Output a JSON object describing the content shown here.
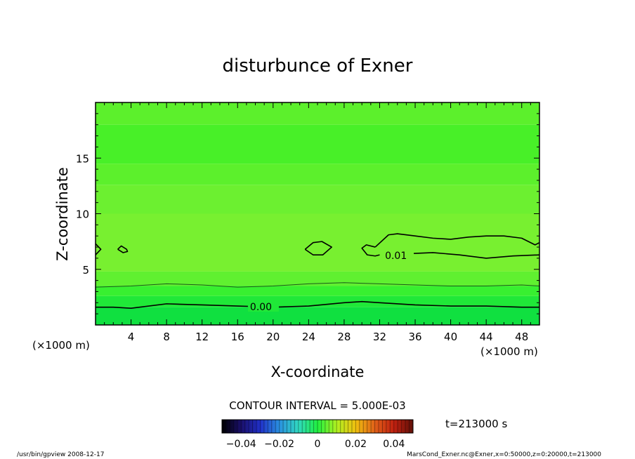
{
  "chart_data": {
    "type": "contour",
    "title": "disturbunce of Exner",
    "xlabel": "X-coordinate",
    "ylabel": "Z-coordinate",
    "x_unit": "(×1000 m)",
    "y_unit": "(×1000 m)",
    "xlim": [
      0,
      50
    ],
    "ylim": [
      0,
      20
    ],
    "x_ticks": [
      4,
      8,
      12,
      16,
      20,
      24,
      28,
      32,
      36,
      40,
      44,
      48
    ],
    "y_ticks": [
      5,
      10,
      15
    ],
    "contour_interval_label": "CONTOUR INTERVAL = 5.000E-03",
    "time_label": "t=213000 s",
    "contour_labels": [
      {
        "text": "0.00",
        "x": 17.4,
        "z": 1.7
      },
      {
        "text": "0.01",
        "x": 32.6,
        "z": 6.3
      }
    ],
    "contours": [
      {
        "level": 0.0,
        "points": [
          [
            0,
            1.6
          ],
          [
            2,
            1.6
          ],
          [
            4,
            1.5
          ],
          [
            6,
            1.7
          ],
          [
            8,
            1.9
          ],
          [
            12,
            1.8
          ],
          [
            16,
            1.7
          ],
          [
            20,
            1.6
          ],
          [
            24,
            1.7
          ],
          [
            28,
            2.0
          ],
          [
            30,
            2.1
          ],
          [
            32,
            2.0
          ],
          [
            36,
            1.8
          ],
          [
            40,
            1.7
          ],
          [
            44,
            1.7
          ],
          [
            48,
            1.6
          ],
          [
            50,
            1.6
          ]
        ]
      },
      {
        "level": 0.01,
        "points": [
          [
            31.5,
            7.0
          ],
          [
            30.5,
            7.2
          ],
          [
            30.0,
            6.9
          ],
          [
            30.6,
            6.3
          ],
          [
            31.5,
            6.2
          ],
          [
            32.0,
            6.3
          ]
        ]
      },
      {
        "level": 0.01,
        "points": [
          [
            35.0,
            6.4
          ],
          [
            38,
            6.5
          ],
          [
            41,
            6.3
          ],
          [
            44,
            6.0
          ],
          [
            47,
            6.2
          ],
          [
            50,
            6.3
          ]
        ]
      },
      {
        "level": 0.01,
        "points": [
          [
            31.5,
            7.0
          ],
          [
            33,
            8.1
          ],
          [
            34,
            8.2
          ],
          [
            36,
            8.0
          ],
          [
            38,
            7.8
          ],
          [
            40,
            7.7
          ],
          [
            42,
            7.9
          ],
          [
            44,
            8.0
          ],
          [
            46,
            8.0
          ],
          [
            48,
            7.8
          ],
          [
            49.5,
            7.2
          ],
          [
            50,
            7.4
          ]
        ]
      },
      {
        "level": 0.01,
        "points": [
          [
            23.6,
            6.8
          ],
          [
            24.5,
            7.4
          ],
          [
            25.5,
            7.5
          ],
          [
            26.6,
            7.0
          ],
          [
            25.6,
            6.3
          ],
          [
            24.5,
            6.3
          ],
          [
            23.6,
            6.8
          ]
        ]
      },
      {
        "level": 0.01,
        "points": [
          [
            2.5,
            6.8
          ],
          [
            2.9,
            7.1
          ],
          [
            3.5,
            6.8
          ],
          [
            3.6,
            6.6
          ],
          [
            3.1,
            6.5
          ],
          [
            2.5,
            6.8
          ]
        ]
      },
      {
        "level": 0.01,
        "points": [
          [
            0,
            7.3
          ],
          [
            0.6,
            6.8
          ],
          [
            0,
            6.3
          ]
        ]
      }
    ],
    "thin_contours": [
      {
        "points": [
          [
            0,
            3.4
          ],
          [
            4,
            3.5
          ],
          [
            8,
            3.7
          ],
          [
            12,
            3.6
          ],
          [
            16,
            3.4
          ],
          [
            20,
            3.5
          ],
          [
            24,
            3.7
          ],
          [
            28,
            3.8
          ],
          [
            32,
            3.7
          ],
          [
            36,
            3.6
          ],
          [
            40,
            3.5
          ],
          [
            44,
            3.5
          ],
          [
            48,
            3.6
          ],
          [
            50,
            3.5
          ]
        ]
      }
    ],
    "bands": [
      {
        "z0": 0.0,
        "z1": 1.6,
        "color": "#10e040"
      },
      {
        "z0": 1.6,
        "z1": 2.6,
        "color": "#20e838"
      },
      {
        "z0": 2.6,
        "z1": 3.5,
        "color": "#38f030"
      },
      {
        "z0": 3.5,
        "z1": 4.8,
        "color": "#60f030"
      },
      {
        "z0": 4.8,
        "z1": 10.0,
        "color": "#78f030"
      },
      {
        "z0": 10.0,
        "z1": 12.6,
        "color": "#6cf030"
      },
      {
        "z0": 12.6,
        "z1": 14.5,
        "color": "#5cf02c"
      },
      {
        "z0": 14.5,
        "z1": 18.0,
        "color": "#48f028"
      },
      {
        "z0": 18.0,
        "z1": 20.0,
        "color": "#5cf02c"
      }
    ],
    "colorbar": {
      "ticks": [
        "−0.04",
        "−0.02",
        "0",
        "0.02",
        "0.04"
      ],
      "tick_values": [
        -0.04,
        -0.02,
        0,
        0.02,
        0.04
      ],
      "range": [
        -0.05,
        0.05
      ],
      "stops": [
        "#000000",
        "#1a0f6a",
        "#2030c8",
        "#2a90e0",
        "#30d8c0",
        "#20f040",
        "#b0f020",
        "#f0c010",
        "#e06018",
        "#c02010",
        "#601008"
      ]
    }
  },
  "footer": {
    "left": "/usr/bin/gpview   2008-12-17",
    "right": "MarsCond_Exner.nc@Exner,x=0:50000,z=0:20000,t=213000"
  }
}
